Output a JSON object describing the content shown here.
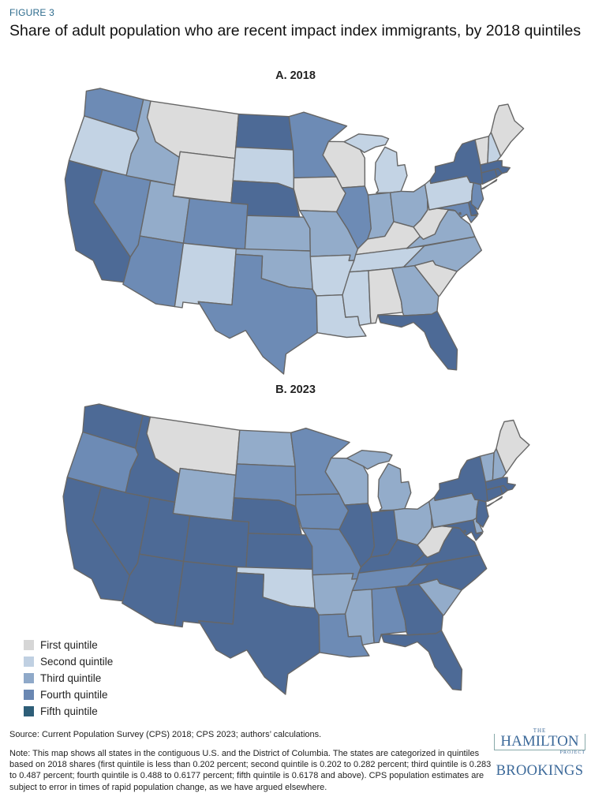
{
  "header": {
    "figure_label": "FIGURE 3",
    "title": "Share of adult population who are recent impact index immigrants, by 2018 quintiles"
  },
  "legend": {
    "items": [
      {
        "label": "First quintile",
        "color": "#dcdcdc",
        "swatch": "#d6d6d6"
      },
      {
        "label": "Second quintile",
        "color": "#c3d3e4",
        "swatch": "#c0d0e2"
      },
      {
        "label": "Third quintile",
        "color": "#93acca",
        "swatch": "#8fa9c9"
      },
      {
        "label": "Fourth quintile",
        "color": "#6d8bb5",
        "swatch": "#6a87b2"
      },
      {
        "label": "Fifth quintile",
        "color": "#4d6a96",
        "swatch": "#2e5e78"
      }
    ],
    "border_color": "#666666"
  },
  "chart_data": [
    {
      "type": "choropleth",
      "title": "A. 2018",
      "quintile": {
        "WA": 4,
        "OR": 2,
        "CA": 5,
        "NV": 4,
        "ID": 3,
        "MT": 1,
        "WY": 1,
        "UT": 3,
        "CO": 4,
        "AZ": 4,
        "NM": 2,
        "ND": 5,
        "SD": 2,
        "NE": 5,
        "KS": 3,
        "OK": 3,
        "TX": 4,
        "MN": 4,
        "IA": 1,
        "MO": 3,
        "AR": 2,
        "LA": 2,
        "WI": 1,
        "IL": 4,
        "MI": 2,
        "IN": 3,
        "OH": 3,
        "KY": 1,
        "TN": 2,
        "MS": 2,
        "AL": 1,
        "GA": 3,
        "FL": 5,
        "SC": 1,
        "NC": 3,
        "VA": 3,
        "WV": 1,
        "MD": 4,
        "DE": 5,
        "DC": 4,
        "PA": 2,
        "NJ": 4,
        "NY": 5,
        "VT": 1,
        "NH": 2,
        "ME": 1,
        "MA": 5,
        "CT": 5,
        "RI": 5
      }
    },
    {
      "type": "choropleth",
      "title": "B. 2023",
      "quintile": {
        "WA": 5,
        "OR": 4,
        "CA": 5,
        "NV": 5,
        "ID": 5,
        "MT": 1,
        "WY": 3,
        "UT": 5,
        "CO": 5,
        "AZ": 5,
        "NM": 5,
        "ND": 3,
        "SD": 4,
        "NE": 5,
        "KS": 5,
        "OK": 2,
        "TX": 5,
        "MN": 4,
        "IA": 4,
        "MO": 4,
        "AR": 3,
        "LA": 4,
        "WI": 3,
        "IL": 5,
        "MI": 3,
        "IN": 5,
        "OH": 3,
        "KY": 5,
        "TN": 4,
        "MS": 3,
        "AL": 4,
        "GA": 5,
        "FL": 5,
        "SC": 3,
        "NC": 5,
        "VA": 5,
        "WV": 1,
        "MD": 5,
        "DE": 3,
        "DC": 5,
        "PA": 3,
        "NJ": 5,
        "NY": 5,
        "VT": 3,
        "NH": 3,
        "ME": 1,
        "MA": 5,
        "CT": 5,
        "RI": 5
      }
    }
  ],
  "footer": {
    "source": "Source: Current Population Survey (CPS) 2018; CPS 2023; authors’ calculations.",
    "note": "Note: This map shows all states in the contiguous U.S. and the District of Columbia. The states are categorized in quintiles based on 2018 shares (first quintile is less than 0.202 percent; second quintile is 0.202 to 0.282 percent; third quintile is 0.283 to 0.487 percent; fourth quintile is 0.488 to 0.6177 percent; fifth quintile is 0.6178 and above). CPS population estimates are subject to error in times of rapid population change, as we have argued elsewhere."
  },
  "logo": {
    "the": "THE",
    "hamilton": "HAMILTON",
    "project": "PROJECT",
    "brookings": "BROOKINGS"
  }
}
